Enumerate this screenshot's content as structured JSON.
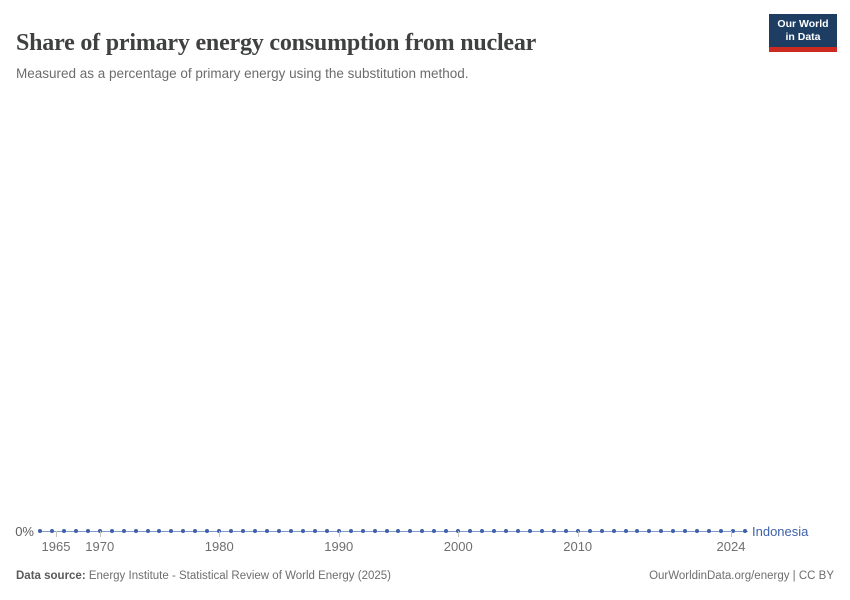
{
  "header": {
    "title": "Share of primary energy consumption from nuclear",
    "subtitle": "Measured as a percentage of primary energy using the substitution method.",
    "logo": {
      "line1": "Our World",
      "line2": "in Data",
      "bg_color": "#1d3d63",
      "stripe_color": "#cc2a1e"
    }
  },
  "chart_data": {
    "type": "line",
    "title": "Share of primary energy consumption from nuclear",
    "subtitle": "Measured as a percentage of primary energy using the substitution method.",
    "x_start": 1965,
    "x_end": 2024,
    "series": [
      {
        "name": "Indonesia",
        "color": "#3e61a9",
        "line_color": "#7f9bce",
        "values": [
          0,
          0,
          0,
          0,
          0,
          0,
          0,
          0,
          0,
          0,
          0,
          0,
          0,
          0,
          0,
          0,
          0,
          0,
          0,
          0,
          0,
          0,
          0,
          0,
          0,
          0,
          0,
          0,
          0,
          0,
          0,
          0,
          0,
          0,
          0,
          0,
          0,
          0,
          0,
          0,
          0,
          0,
          0,
          0,
          0,
          0,
          0,
          0,
          0,
          0,
          0,
          0,
          0,
          0,
          0,
          0,
          0,
          0,
          0,
          0
        ]
      }
    ],
    "x_ticks": [
      1965,
      1970,
      1980,
      1990,
      2000,
      2010,
      2024
    ],
    "y_axis": {
      "tick_labels": [
        "0%"
      ],
      "unit": "%"
    },
    "ylim": [
      0,
      0
    ],
    "grid": false,
    "legend_position": "end-of-line",
    "markers": true
  },
  "footer": {
    "source_prefix": "Data source:",
    "source_text": " Energy Institute - Statistical Review of World Energy (2025)",
    "link_text": "OurWorldinData.org/energy | CC BY"
  }
}
